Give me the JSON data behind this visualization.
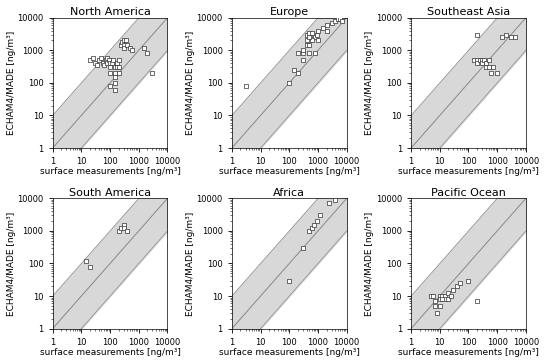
{
  "titles": [
    "North America",
    "Europe",
    "Southeast Asia",
    "South America",
    "Africa",
    "Pacific Ocean"
  ],
  "xlabel": "surface measurements [ng/m³]",
  "ylabel": "ECHAM4/MADE [ng/m³]",
  "xlim": [
    1,
    10000
  ],
  "ylim": [
    1,
    10000
  ],
  "band_factor": 10,
  "north_america": [
    [
      20,
      500
    ],
    [
      25,
      600
    ],
    [
      30,
      400
    ],
    [
      35,
      350
    ],
    [
      40,
      500
    ],
    [
      50,
      600
    ],
    [
      55,
      400
    ],
    [
      60,
      350
    ],
    [
      70,
      500
    ],
    [
      80,
      600
    ],
    [
      80,
      400
    ],
    [
      90,
      500
    ],
    [
      100,
      400
    ],
    [
      100,
      300
    ],
    [
      100,
      200
    ],
    [
      120,
      400
    ],
    [
      130,
      500
    ],
    [
      150,
      300
    ],
    [
      150,
      200
    ],
    [
      150,
      150
    ],
    [
      150,
      100
    ],
    [
      170,
      400
    ],
    [
      180,
      300
    ],
    [
      200,
      500
    ],
    [
      200,
      300
    ],
    [
      200,
      200
    ],
    [
      250,
      1500
    ],
    [
      270,
      1800
    ],
    [
      300,
      2000
    ],
    [
      300,
      1500
    ],
    [
      300,
      1200
    ],
    [
      350,
      2000
    ],
    [
      400,
      1500
    ],
    [
      500,
      1200
    ],
    [
      600,
      1000
    ],
    [
      1500,
      1200
    ],
    [
      2000,
      800
    ],
    [
      3000,
      200
    ],
    [
      100,
      80
    ],
    [
      150,
      60
    ]
  ],
  "europe": [
    [
      3,
      80
    ],
    [
      100,
      100
    ],
    [
      150,
      250
    ],
    [
      200,
      200
    ],
    [
      200,
      800
    ],
    [
      300,
      800
    ],
    [
      300,
      1000
    ],
    [
      400,
      1500
    ],
    [
      400,
      2000
    ],
    [
      500,
      1500
    ],
    [
      500,
      800
    ],
    [
      600,
      2500
    ],
    [
      700,
      3000
    ],
    [
      800,
      2500
    ],
    [
      800,
      800
    ],
    [
      900,
      3000
    ],
    [
      1000,
      4000
    ],
    [
      1500,
      5000
    ],
    [
      2000,
      6000
    ],
    [
      3000,
      7000
    ],
    [
      4000,
      8000
    ],
    [
      5000,
      9000
    ],
    [
      6000,
      9000
    ],
    [
      7000,
      8000
    ],
    [
      400,
      3000
    ],
    [
      500,
      3500
    ],
    [
      600,
      2000
    ],
    [
      300,
      500
    ],
    [
      1000,
      2000
    ],
    [
      2000,
      4000
    ],
    [
      600,
      3500
    ],
    [
      500,
      2500
    ]
  ],
  "southeast_asia": [
    [
      150,
      500
    ],
    [
      200,
      500
    ],
    [
      200,
      400
    ],
    [
      250,
      500
    ],
    [
      300,
      500
    ],
    [
      300,
      400
    ],
    [
      350,
      500
    ],
    [
      400,
      400
    ],
    [
      400,
      300
    ],
    [
      500,
      500
    ],
    [
      500,
      300
    ],
    [
      600,
      200
    ],
    [
      700,
      300
    ],
    [
      1000,
      200
    ],
    [
      200,
      3000
    ],
    [
      1500,
      2500
    ],
    [
      2000,
      3000
    ],
    [
      3000,
      2500
    ],
    [
      4000,
      2500
    ]
  ],
  "south_america": [
    [
      15,
      120
    ],
    [
      20,
      80
    ],
    [
      200,
      1000
    ],
    [
      250,
      1200
    ],
    [
      300,
      1500
    ],
    [
      300,
      1200
    ],
    [
      400,
      1000
    ]
  ],
  "africa": [
    [
      100,
      30
    ],
    [
      300,
      300
    ],
    [
      500,
      1000
    ],
    [
      600,
      1200
    ],
    [
      700,
      1500
    ],
    [
      900,
      2000
    ],
    [
      1200,
      3000
    ],
    [
      2500,
      7000
    ],
    [
      4000,
      9000
    ]
  ],
  "pacific_ocean": [
    [
      5,
      10
    ],
    [
      6,
      10
    ],
    [
      7,
      5
    ],
    [
      8,
      3
    ],
    [
      10,
      10
    ],
    [
      10,
      8
    ],
    [
      10,
      5
    ],
    [
      12,
      10
    ],
    [
      15,
      10
    ],
    [
      15,
      8
    ],
    [
      20,
      12
    ],
    [
      20,
      8
    ],
    [
      25,
      10
    ],
    [
      30,
      15
    ],
    [
      40,
      20
    ],
    [
      50,
      25
    ],
    [
      100,
      30
    ],
    [
      200,
      7
    ],
    [
      7,
      7
    ],
    [
      12,
      8
    ]
  ],
  "bg_color": "#ffffff",
  "band_color": "#d8d8d8",
  "marker_facecolor": "#ffffff",
  "marker_edgecolor": "#333333",
  "line_color": "#888888",
  "title_fontsize": 8,
  "label_fontsize": 6.5,
  "tick_fontsize": 6
}
